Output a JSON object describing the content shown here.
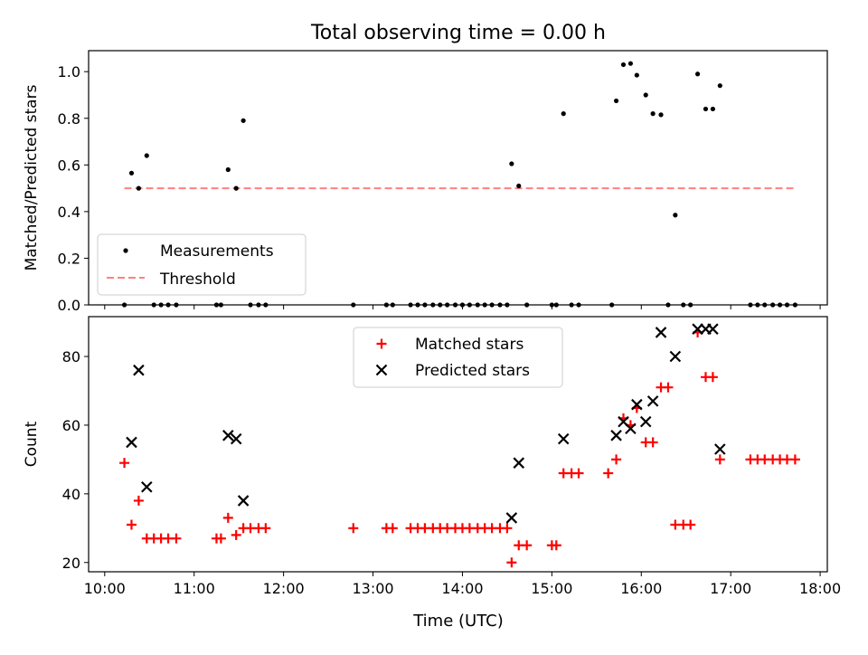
{
  "title": "Total observing time = 0.00 h",
  "x_axis": {
    "label": "Time (UTC)",
    "ticks": [
      {
        "x": 10.0,
        "label": "10:00"
      },
      {
        "x": 11.0,
        "label": "11:00"
      },
      {
        "x": 12.0,
        "label": "12:00"
      },
      {
        "x": 13.0,
        "label": "13:00"
      },
      {
        "x": 14.0,
        "label": "14:00"
      },
      {
        "x": 15.0,
        "label": "15:00"
      },
      {
        "x": 16.0,
        "label": "16:00"
      },
      {
        "x": 17.0,
        "label": "17:00"
      },
      {
        "x": 18.0,
        "label": "18:00"
      }
    ]
  },
  "colors": {
    "measurements": "#000000",
    "threshold": "#ff8080",
    "matched": "#ff0000",
    "predicted": "#000000"
  },
  "chart_data": [
    {
      "type": "scatter",
      "ylabel": "Matched/Predicted stars",
      "xlim": [
        9.82,
        18.08
      ],
      "ylim": [
        0,
        1.09
      ],
      "yticks": [
        0.0,
        0.2,
        0.4,
        0.6,
        0.8,
        1.0
      ],
      "ytick_labels": [
        "0.0",
        "0.2",
        "0.4",
        "0.6",
        "0.8",
        "1.0"
      ],
      "legend_position": "lower-left",
      "series": [
        {
          "name": "Measurements",
          "x": [
            10.22,
            10.3,
            10.38,
            10.47,
            10.55,
            10.63,
            10.71,
            10.8,
            11.25,
            11.3,
            11.38,
            11.47,
            11.55,
            11.63,
            11.72,
            11.8,
            12.78,
            13.15,
            13.22,
            13.42,
            13.5,
            13.58,
            13.67,
            13.75,
            13.83,
            13.92,
            14.0,
            14.08,
            14.17,
            14.25,
            14.33,
            14.42,
            14.5,
            14.55,
            14.63,
            14.72,
            15.0,
            15.05,
            15.13,
            15.22,
            15.3,
            15.67,
            15.72,
            15.8,
            15.88,
            15.95,
            16.05,
            16.13,
            16.22,
            16.3,
            16.38,
            16.47,
            16.55,
            16.63,
            16.72,
            16.8,
            16.88,
            17.22,
            17.3,
            17.38,
            17.47,
            17.55,
            17.63,
            17.72
          ],
          "y": [
            0.0,
            0.565,
            0.5,
            0.64,
            0.0,
            0.0,
            0.0,
            0.0,
            0.0,
            0.0,
            0.58,
            0.5,
            0.79,
            0.0,
            0.0,
            0.0,
            0.0,
            0.0,
            0.0,
            0.0,
            0.0,
            0.0,
            0.0,
            0.0,
            0.0,
            0.0,
            0.0,
            0.0,
            0.0,
            0.0,
            0.0,
            0.0,
            0.0,
            0.605,
            0.51,
            0.0,
            0.0,
            0.0,
            0.82,
            0.0,
            0.0,
            0.0,
            0.875,
            1.03,
            1.035,
            0.985,
            0.9,
            0.82,
            0.815,
            0.0,
            0.385,
            0.0,
            0.0,
            0.99,
            0.84,
            0.84,
            0.94,
            0.0,
            0.0,
            0.0,
            0.0,
            0.0,
            0.0,
            0.0
          ]
        },
        {
          "name": "Threshold",
          "x": [
            10.22,
            17.72
          ],
          "y": [
            0.5,
            0.5
          ]
        }
      ]
    },
    {
      "type": "scatter",
      "xlabel": "Time (UTC)",
      "ylabel": "Count",
      "xlim": [
        9.82,
        18.08
      ],
      "ylim": [
        17.3,
        91.6
      ],
      "yticks": [
        20,
        40,
        60,
        80
      ],
      "ytick_labels": [
        "20",
        "40",
        "60",
        "80"
      ],
      "legend_position": "upper-center",
      "series": [
        {
          "name": "Matched stars",
          "x": [
            10.22,
            10.3,
            10.38,
            10.47,
            10.55,
            10.63,
            10.71,
            10.8,
            11.25,
            11.3,
            11.38,
            11.47,
            11.55,
            11.63,
            11.72,
            11.8,
            12.78,
            13.15,
            13.22,
            13.42,
            13.5,
            13.58,
            13.67,
            13.75,
            13.83,
            13.92,
            14.0,
            14.08,
            14.17,
            14.25,
            14.33,
            14.42,
            14.5,
            14.55,
            14.63,
            14.72,
            15.0,
            15.05,
            15.13,
            15.22,
            15.3,
            15.63,
            15.72,
            15.8,
            15.88,
            15.95,
            16.05,
            16.13,
            16.22,
            16.3,
            16.38,
            16.47,
            16.55,
            16.63,
            16.72,
            16.8,
            16.88,
            17.22,
            17.3,
            17.38,
            17.47,
            17.55,
            17.63,
            17.72
          ],
          "y": [
            49,
            31,
            38,
            27,
            27,
            27,
            27,
            27,
            27,
            27,
            33,
            28,
            30,
            30,
            30,
            30,
            30,
            30,
            30,
            30,
            30,
            30,
            30,
            30,
            30,
            30,
            30,
            30,
            30,
            30,
            30,
            30,
            30,
            20,
            25,
            25,
            25,
            25,
            46,
            46,
            46,
            46,
            50,
            62,
            60,
            65,
            55,
            55,
            71,
            71,
            31,
            31,
            31,
            87,
            74,
            74,
            50,
            50,
            50,
            50,
            50,
            50,
            50,
            50
          ]
        },
        {
          "name": "Predicted stars",
          "x": [
            10.3,
            10.38,
            10.47,
            11.38,
            11.47,
            11.55,
            14.55,
            14.63,
            15.13,
            15.72,
            15.8,
            15.88,
            15.95,
            16.05,
            16.13,
            16.22,
            16.38,
            16.63,
            16.72,
            16.8,
            16.88
          ],
          "y": [
            55,
            76,
            42,
            57,
            56,
            38,
            33,
            49,
            56,
            57,
            61,
            59,
            66,
            61,
            67,
            87,
            80,
            88,
            88,
            88,
            53
          ]
        }
      ]
    }
  ]
}
